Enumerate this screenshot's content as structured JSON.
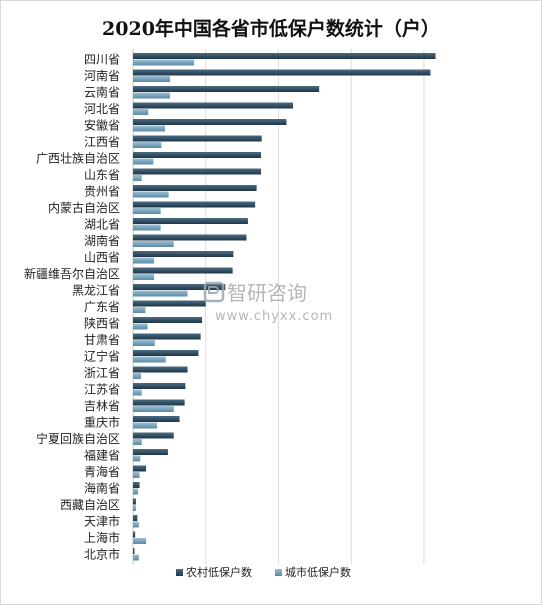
{
  "chart_data": {
    "type": "bar",
    "orientation": "horizontal",
    "title": "2020年中国各省市低保户数统计（户）",
    "categories": [
      "四川省",
      "河南省",
      "云南省",
      "河北省",
      "安徽省",
      "江西省",
      "广西壮族自治区",
      "山东省",
      "贵州省",
      "内蒙古自治区",
      "湖北省",
      "湖南省",
      "山西省",
      "新疆维吾尔自治区",
      "黑龙江省",
      "广东省",
      "陕西省",
      "甘肃省",
      "辽宁省",
      "浙江省",
      "江苏省",
      "吉林省",
      "重庆市",
      "宁夏回族自治区",
      "福建省",
      "青海省",
      "海南省",
      "西藏自治区",
      "天津市",
      "上海市",
      "北京市"
    ],
    "series": [
      {
        "name": "农村低保户数",
        "color": "#2e4a5e",
        "values": [
          4160000,
          4090000,
          2560000,
          2200000,
          2110000,
          1770000,
          1760000,
          1760000,
          1700000,
          1680000,
          1580000,
          1560000,
          1380000,
          1370000,
          1270000,
          1000000,
          950000,
          930000,
          900000,
          750000,
          720000,
          710000,
          640000,
          560000,
          480000,
          180000,
          90000,
          40000,
          60000,
          30000,
          20000
        ]
      },
      {
        "name": "城市低保户数",
        "color": "#6f9bb4",
        "values": [
          840000,
          510000,
          510000,
          210000,
          440000,
          390000,
          280000,
          120000,
          490000,
          380000,
          380000,
          560000,
          290000,
          290000,
          750000,
          170000,
          200000,
          300000,
          450000,
          110000,
          120000,
          560000,
          330000,
          120000,
          100000,
          90000,
          70000,
          40000,
          80000,
          180000,
          80000
        ]
      }
    ],
    "xlim": [
      0,
      4400000
    ],
    "grid": true,
    "legend_position": "bottom"
  },
  "watermark": {
    "brand": "智研咨询",
    "url": "www.chyxx.com"
  }
}
